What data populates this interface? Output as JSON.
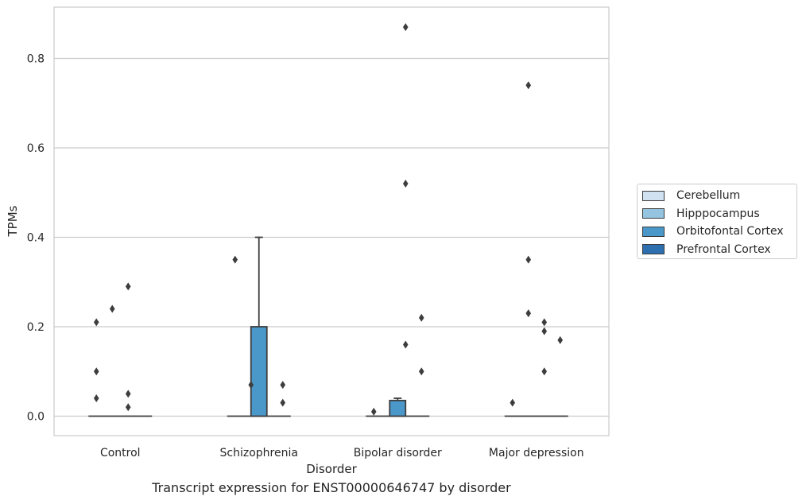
{
  "chart_data": {
    "type": "box",
    "title": "",
    "caption": "Transcript expression for ENST00000646747 by disorder",
    "xlabel": "Disorder",
    "ylabel": "TPMs",
    "categories": [
      "Control",
      "Schizophrenia",
      "Bipolar disorder",
      "Major depression"
    ],
    "ylim": [
      -0.043,
      0.915
    ],
    "yticks": [
      0.0,
      0.2,
      0.4,
      0.6,
      0.8
    ],
    "ytick_labels": [
      "0.0",
      "0.2",
      "0.4",
      "0.6",
      "0.8"
    ],
    "grid": "horizontal",
    "legend_position": "right",
    "series": [
      {
        "name": "Cerebellum",
        "color": "#d0e1f2",
        "boxes": []
      },
      {
        "name": "Hipppocampus",
        "color": "#94c4df",
        "boxes": []
      },
      {
        "name": "Orbitofontal Cortex",
        "color": "#4a98c9",
        "boxes": [
          {
            "category": "Control",
            "q1": 0,
            "median": 0,
            "q3": 0,
            "whisker_low": 0,
            "whisker_high": 0,
            "offset": 0,
            "outliers": []
          },
          {
            "category": "Schizophrenia",
            "q1": 0,
            "median": 0,
            "q3": 0.2,
            "whisker_low": 0,
            "whisker_high": 0.4,
            "offset": 0,
            "outliers": []
          },
          {
            "category": "Bipolar disorder",
            "q1": 0,
            "median": 0,
            "q3": 0.035,
            "whisker_low": 0,
            "whisker_high": 0.04,
            "offset": 0,
            "outliers": []
          },
          {
            "category": "Major depression",
            "q1": 0,
            "median": 0,
            "q3": 0,
            "whisker_low": 0,
            "whisker_high": 0,
            "offset": 0,
            "outliers": []
          }
        ]
      },
      {
        "name": "Prefrontal Cortex",
        "color": "#2e6fb0",
        "boxes": []
      }
    ],
    "outlier_points": [
      {
        "category": "Control",
        "offset": -1.5,
        "y": 0.21
      },
      {
        "category": "Control",
        "offset": -1.5,
        "y": 0.1
      },
      {
        "category": "Control",
        "offset": -1.5,
        "y": 0.04
      },
      {
        "category": "Control",
        "offset": -0.5,
        "y": 0.24
      },
      {
        "category": "Control",
        "offset": 0.5,
        "y": 0.29
      },
      {
        "category": "Control",
        "offset": 0.5,
        "y": 0.05
      },
      {
        "category": "Control",
        "offset": 0.5,
        "y": 0.02
      },
      {
        "category": "Schizophrenia",
        "offset": -1.5,
        "y": 0.35
      },
      {
        "category": "Schizophrenia",
        "offset": -0.5,
        "y": 0.07
      },
      {
        "category": "Schizophrenia",
        "offset": 1.5,
        "y": 0.07
      },
      {
        "category": "Schizophrenia",
        "offset": 1.5,
        "y": 0.03
      },
      {
        "category": "Bipolar disorder",
        "offset": -1.5,
        "y": 0.01
      },
      {
        "category": "Bipolar disorder",
        "offset": 0.5,
        "y": 0.87
      },
      {
        "category": "Bipolar disorder",
        "offset": 0.5,
        "y": 0.52
      },
      {
        "category": "Bipolar disorder",
        "offset": 0.5,
        "y": 0.16
      },
      {
        "category": "Bipolar disorder",
        "offset": 1.5,
        "y": 0.22
      },
      {
        "category": "Bipolar disorder",
        "offset": 1.5,
        "y": 0.1
      },
      {
        "category": "Major depression",
        "offset": -1.5,
        "y": 0.03
      },
      {
        "category": "Major depression",
        "offset": -0.5,
        "y": 0.74
      },
      {
        "category": "Major depression",
        "offset": -0.5,
        "y": 0.35
      },
      {
        "category": "Major depression",
        "offset": -0.5,
        "y": 0.23
      },
      {
        "category": "Major depression",
        "offset": 0.5,
        "y": 0.21
      },
      {
        "category": "Major depression",
        "offset": 0.5,
        "y": 0.19
      },
      {
        "category": "Major depression",
        "offset": 0.5,
        "y": 0.1
      },
      {
        "category": "Major depression",
        "offset": 1.5,
        "y": 0.17
      }
    ]
  }
}
